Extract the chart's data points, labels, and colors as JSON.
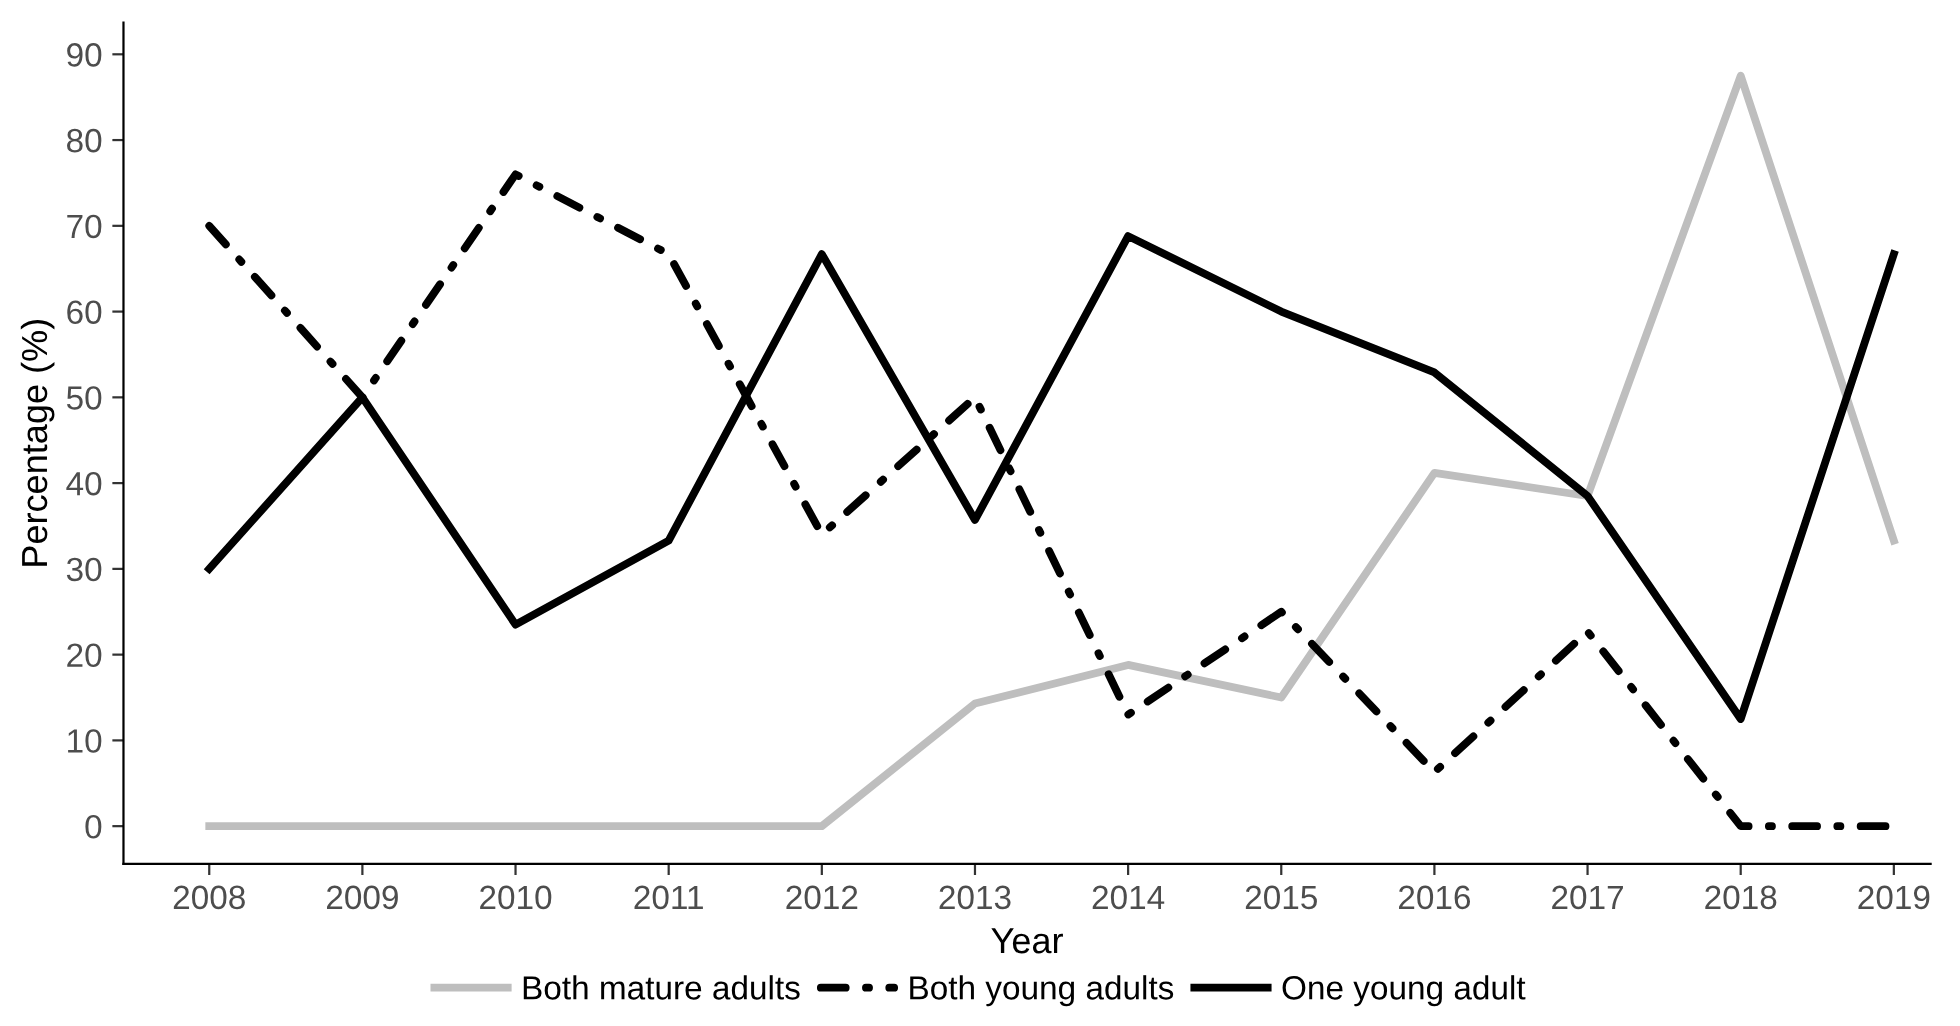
{
  "chart_data": {
    "type": "line",
    "xlabel": "Year",
    "ylabel": "Percentage (%)",
    "x": [
      2008,
      2009,
      2010,
      2011,
      2012,
      2013,
      2014,
      2015,
      2016,
      2017,
      2018,
      2019
    ],
    "series": [
      {
        "name": "Both mature adults",
        "color": "#bebebe",
        "line_style": "solid",
        "values": [
          0,
          0,
          0,
          0,
          0,
          14.3,
          18.8,
          15,
          41.2,
          38.5,
          87.5,
          33.3
        ]
      },
      {
        "name": "Both young adults",
        "color": "#000000",
        "line_style": "dashdot",
        "values": [
          70,
          50,
          76,
          66.7,
          34,
          50,
          13,
          25,
          6.3,
          22.7,
          0,
          0
        ]
      },
      {
        "name": "One young adult",
        "color": "#000000",
        "line_style": "solid",
        "values": [
          30,
          50,
          23.5,
          33.3,
          66.7,
          35.7,
          68.8,
          60,
          52.9,
          38.5,
          12.5,
          66.7
        ]
      }
    ],
    "xlim": [
      2007.44,
      2019.24
    ],
    "ylim": [
      -4.4,
      93.7
    ],
    "xticks": [
      2008,
      2009,
      2010,
      2011,
      2012,
      2013,
      2014,
      2015,
      2016,
      2017,
      2018,
      2019
    ],
    "yticks": [
      0,
      10,
      20,
      30,
      40,
      50,
      60,
      70,
      80,
      90
    ],
    "grid": false,
    "legend": "bottom",
    "marker": "none"
  }
}
